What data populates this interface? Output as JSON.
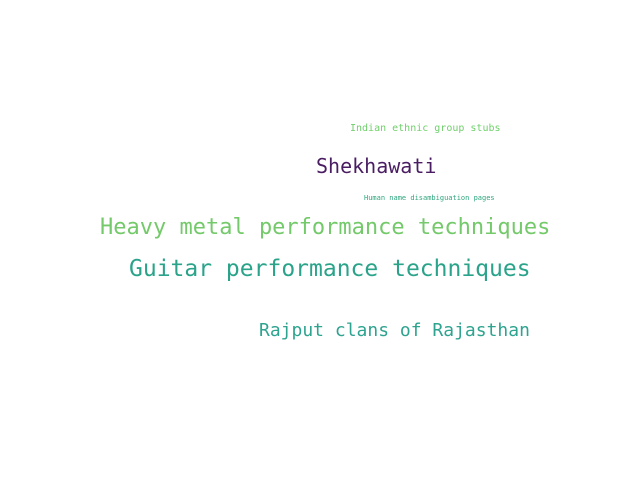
{
  "word_cloud": {
    "words": [
      {
        "text": "Indian ethnic group stubs",
        "color": "#6fcf6b"
      },
      {
        "text": "Shekhawati",
        "color": "#4a1d63"
      },
      {
        "text": "Human name disambiguation pages",
        "color": "#2ea67e"
      },
      {
        "text": "Heavy metal performance techniques",
        "color": "#74c96a"
      },
      {
        "text": "Guitar performance techniques",
        "color": "#2aa38a"
      },
      {
        "text": "Rajput clans of Rajasthan",
        "color": "#2ea38f"
      }
    ]
  }
}
